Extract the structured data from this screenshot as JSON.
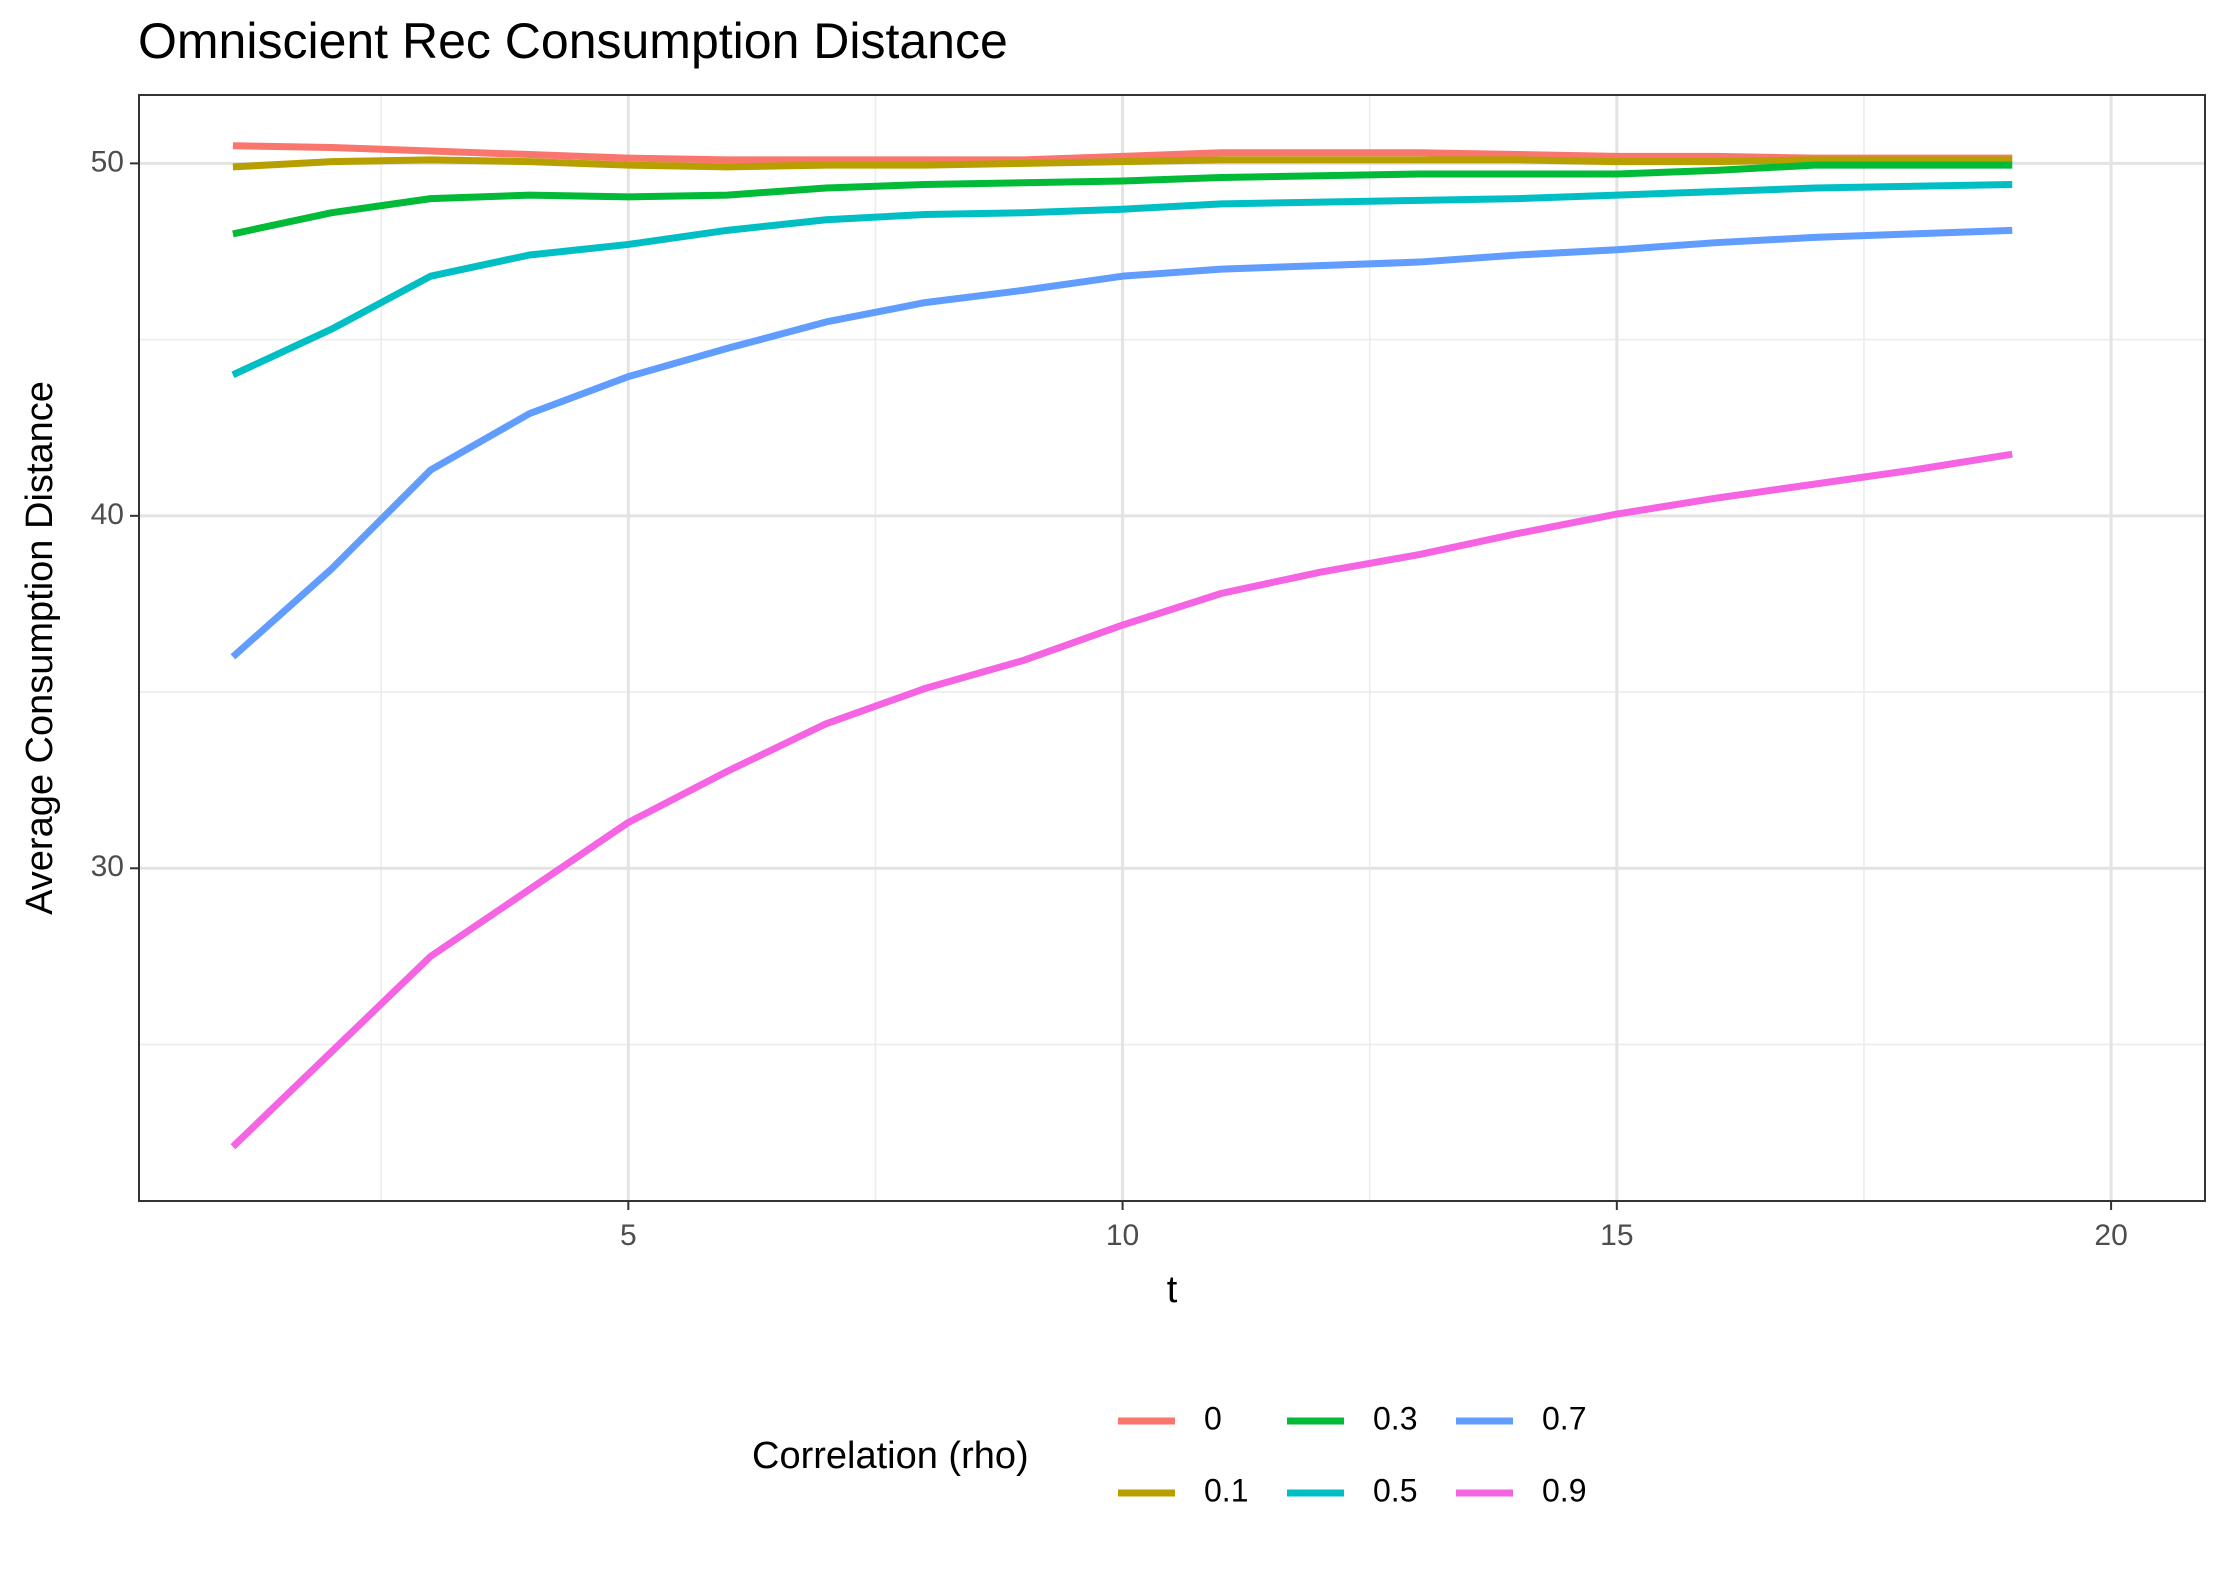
{
  "chart_data": {
    "type": "line",
    "title": "Omniscient Rec Consumption Distance",
    "x_label": "t",
    "y_label": "Average Consumption Distance",
    "legend_title": "Correlation (rho)",
    "legend_position": "bottom",
    "grid": true,
    "x": [
      1,
      2,
      3,
      4,
      5,
      6,
      7,
      8,
      9,
      10,
      11,
      12,
      13,
      14,
      15,
      16,
      17,
      18,
      19
    ],
    "xlim": [
      0.05,
      20.95
    ],
    "xticks": [
      5,
      10,
      15,
      20
    ],
    "xminor": [
      2.5,
      7.5,
      12.5,
      17.5
    ],
    "ylim": [
      20.56,
      51.94
    ],
    "yticks": [
      30,
      40,
      50
    ],
    "yminor": [
      25,
      35,
      45
    ],
    "series": [
      {
        "name": "0",
        "color": "#F8766D",
        "values": [
          50.5,
          50.45,
          50.35,
          50.25,
          50.15,
          50.1,
          50.1,
          50.1,
          50.1,
          50.2,
          50.3,
          50.3,
          50.3,
          50.25,
          50.2,
          50.2,
          50.15,
          50.15,
          50.15
        ]
      },
      {
        "name": "0.1",
        "color": "#B79F00",
        "values": [
          49.9,
          50.05,
          50.1,
          50.05,
          49.95,
          49.9,
          49.95,
          49.95,
          50.0,
          50.05,
          50.1,
          50.1,
          50.1,
          50.1,
          50.05,
          50.05,
          50.1,
          50.1,
          50.1
        ]
      },
      {
        "name": "0.3",
        "color": "#00BA38",
        "values": [
          48.0,
          48.6,
          49.0,
          49.1,
          49.05,
          49.1,
          49.3,
          49.4,
          49.45,
          49.5,
          49.6,
          49.65,
          49.7,
          49.7,
          49.7,
          49.8,
          49.95,
          49.95,
          49.95
        ]
      },
      {
        "name": "0.5",
        "color": "#00BFC4",
        "values": [
          44.0,
          45.3,
          46.8,
          47.4,
          47.7,
          48.1,
          48.4,
          48.55,
          48.6,
          48.7,
          48.85,
          48.9,
          48.95,
          49.0,
          49.1,
          49.2,
          49.3,
          49.35,
          49.4
        ]
      },
      {
        "name": "0.7",
        "color": "#619CFF",
        "values": [
          36.0,
          38.5,
          41.3,
          42.9,
          43.95,
          44.75,
          45.5,
          46.05,
          46.4,
          46.8,
          47.0,
          47.1,
          47.2,
          47.4,
          47.55,
          47.75,
          47.9,
          48.0,
          48.1
        ]
      },
      {
        "name": "0.9",
        "color": "#F564E3",
        "values": [
          22.1,
          24.8,
          27.5,
          29.4,
          31.3,
          32.75,
          34.1,
          35.1,
          35.9,
          36.9,
          37.8,
          38.4,
          38.9,
          39.5,
          40.05,
          40.5,
          40.9,
          41.3,
          41.75
        ]
      }
    ]
  }
}
